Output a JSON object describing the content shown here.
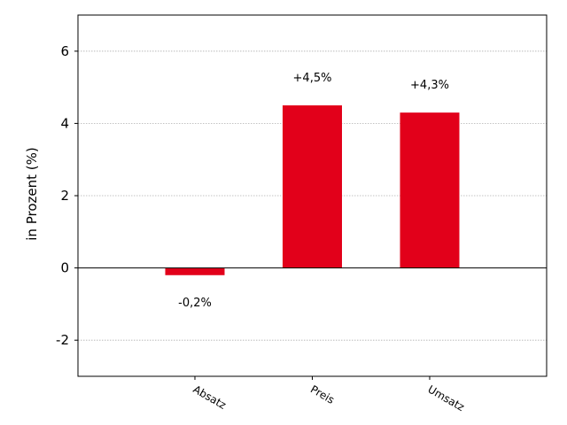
{
  "chart_data": {
    "type": "bar",
    "categories": [
      "Absatz",
      "Preis",
      "Umsatz"
    ],
    "values": [
      -0.2,
      4.5,
      4.3
    ],
    "data_labels": [
      "-0,2%",
      "+4,5%",
      "+4,3%"
    ],
    "ylabel": "in Prozent (%)",
    "ylim": [
      -3,
      7
    ],
    "yticks": [
      -2,
      0,
      2,
      4,
      6
    ],
    "ytick_labels": [
      "-2",
      "0",
      "2",
      "4",
      "6"
    ],
    "grid": "horizontal-dotted",
    "colors": {
      "bar": "#e2001a",
      "grid": "#b0b0b0",
      "axis": "#000000"
    }
  }
}
